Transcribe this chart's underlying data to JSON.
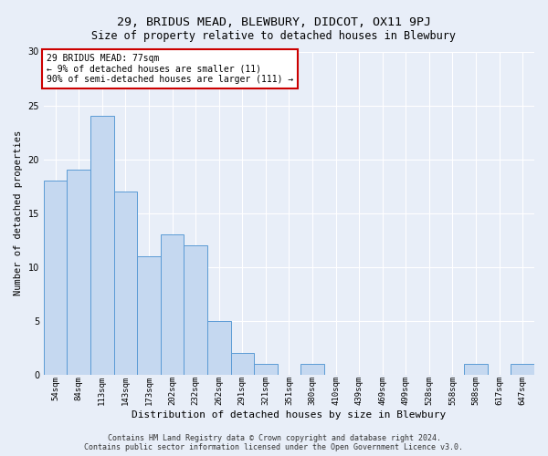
{
  "title": "29, BRIDUS MEAD, BLEWBURY, DIDCOT, OX11 9PJ",
  "subtitle": "Size of property relative to detached houses in Blewbury",
  "xlabel": "Distribution of detached houses by size in Blewbury",
  "ylabel": "Number of detached properties",
  "annotation_lines": [
    "29 BRIDUS MEAD: 77sqm",
    "← 9% of detached houses are smaller (11)",
    "90% of semi-detached houses are larger (111) →"
  ],
  "categories": [
    "54sqm",
    "84sqm",
    "113sqm",
    "143sqm",
    "173sqm",
    "202sqm",
    "232sqm",
    "262sqm",
    "291sqm",
    "321sqm",
    "351sqm",
    "380sqm",
    "410sqm",
    "439sqm",
    "469sqm",
    "499sqm",
    "528sqm",
    "558sqm",
    "588sqm",
    "617sqm",
    "647sqm"
  ],
  "values": [
    18,
    19,
    24,
    17,
    11,
    13,
    12,
    5,
    2,
    1,
    0,
    1,
    0,
    0,
    0,
    0,
    0,
    0,
    1,
    0,
    1
  ],
  "bar_color": "#c5d8f0",
  "bar_edge_color": "#5b9bd5",
  "ylim": [
    0,
    30
  ],
  "yticks": [
    0,
    5,
    10,
    15,
    20,
    25,
    30
  ],
  "background_color": "#e8eef8",
  "grid_color": "#ffffff",
  "annotation_box_color": "#ffffff",
  "annotation_box_edge": "#cc0000",
  "footer_line1": "Contains HM Land Registry data © Crown copyright and database right 2024.",
  "footer_line2": "Contains public sector information licensed under the Open Government Licence v3.0."
}
